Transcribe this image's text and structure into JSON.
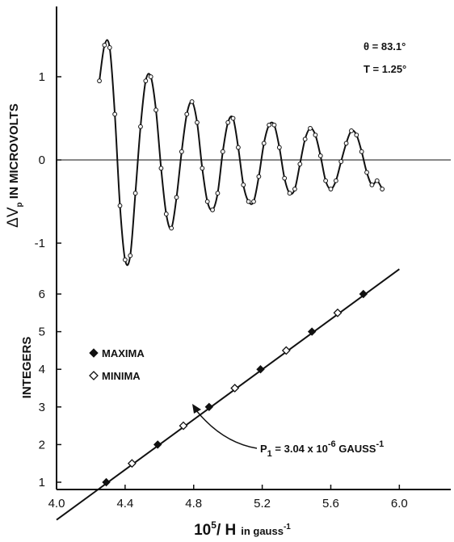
{
  "chart_data": {
    "type": "scatter",
    "x_axis": {
      "ticks": [
        4.0,
        4.4,
        4.8,
        5.2,
        5.6,
        6.0
      ],
      "tick_labels": [
        "4.0",
        "4.4",
        "4.8",
        "5.2",
        "5.6",
        "6.0"
      ],
      "label_main": "10",
      "label_sup": "5",
      "label_rest": "/ H",
      "label_unit": "in gauss",
      "label_unit_sup": "-1",
      "range": [
        4.0,
        6.3
      ]
    },
    "top_panel": {
      "ylabel_prefix": "ΔV",
      "ylabel_sub": "p",
      "ylabel_rest": " IN MICROVOLTS",
      "yticks": [
        -1,
        0,
        1
      ],
      "ytick_labels": [
        "-1",
        "0",
        "1"
      ],
      "ylim": [
        -1.5,
        1.5
      ],
      "annotations": [
        "θ = 83.1°",
        "T = 1.25°"
      ],
      "zero_line": true,
      "curve": {
        "x": [
          4.25,
          4.28,
          4.31,
          4.34,
          4.37,
          4.4,
          4.43,
          4.46,
          4.49,
          4.52,
          4.55,
          4.58,
          4.61,
          4.64,
          4.67,
          4.7,
          4.73,
          4.76,
          4.79,
          4.82,
          4.85,
          4.88,
          4.91,
          4.94,
          4.97,
          5.0,
          5.03,
          5.06,
          5.09,
          5.12,
          5.15,
          5.18,
          5.21,
          5.24,
          5.27,
          5.3,
          5.33,
          5.36,
          5.39,
          5.42,
          5.45,
          5.48,
          5.51,
          5.54,
          5.57,
          5.6,
          5.63,
          5.66,
          5.69,
          5.72,
          5.75,
          5.78,
          5.81,
          5.84,
          5.87,
          5.9
        ],
        "y": [
          0.95,
          1.38,
          1.35,
          0.55,
          -0.55,
          -1.2,
          -1.15,
          -0.4,
          0.4,
          0.95,
          1.0,
          0.6,
          -0.1,
          -0.65,
          -0.82,
          -0.45,
          0.1,
          0.55,
          0.7,
          0.45,
          -0.1,
          -0.5,
          -0.6,
          -0.4,
          0.1,
          0.45,
          0.5,
          0.15,
          -0.3,
          -0.5,
          -0.5,
          -0.2,
          0.2,
          0.42,
          0.42,
          0.15,
          -0.22,
          -0.4,
          -0.35,
          -0.05,
          0.25,
          0.38,
          0.3,
          0.05,
          -0.25,
          -0.35,
          -0.25,
          -0.02,
          0.2,
          0.35,
          0.3,
          0.1,
          -0.15,
          -0.3,
          -0.25,
          -0.35
        ]
      }
    },
    "bottom_panel": {
      "ylabel": "INTEGERS",
      "yticks": [
        1,
        2,
        3,
        4,
        5,
        6
      ],
      "ytick_labels": [
        "1",
        "2",
        "3",
        "4",
        "5",
        "6"
      ],
      "ylim": [
        0,
        7
      ],
      "legend": [
        {
          "name": "MAXIMA",
          "marker": "filled-diamond"
        },
        {
          "name": "MINIMA",
          "marker": "open-diamond"
        }
      ],
      "maxima": {
        "x": [
          4.29,
          4.59,
          4.89,
          5.19,
          5.49,
          5.79
        ],
        "y": [
          1,
          2,
          3,
          4,
          5,
          6
        ]
      },
      "minima": {
        "x": [
          4.44,
          4.74,
          5.04,
          5.34,
          5.64
        ],
        "y": [
          1.5,
          2.5,
          3.5,
          4.5,
          5.5
        ]
      },
      "fit_line": {
        "x": [
          4.0,
          6.0
        ],
        "y": [
          0.0,
          6.66
        ]
      },
      "annotation": {
        "text_prefix": "P",
        "text_sub": "1",
        "text_mid": " = 3.04 x 10",
        "text_sup": "-6",
        "text_unit": " GAUSS",
        "text_unit_sup": "-1"
      }
    }
  }
}
